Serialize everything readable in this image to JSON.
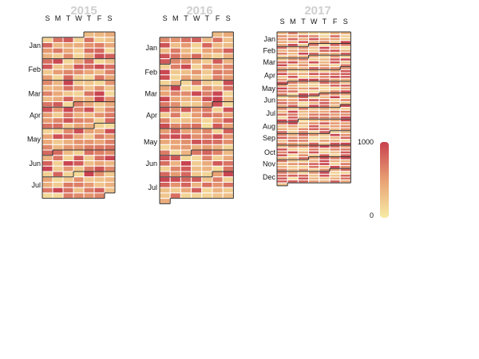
{
  "chart_data": {
    "type": "heatmap",
    "colors": {
      "low": "#f7eba5",
      "mid": "#e8a073",
      "high": "#c8414f"
    },
    "scale": {
      "min": 0,
      "max": 1000,
      "min_label": "0",
      "max_label": "1000"
    },
    "weekday_labels": [
      "S",
      "M",
      "T",
      "W",
      "T",
      "F",
      "S"
    ],
    "panels": [
      {
        "year": "2015",
        "start_month": 1,
        "end_month": 7,
        "end_day": 31,
        "months": [
          "Jan",
          "Feb",
          "Mar",
          "Apr",
          "May",
          "Jun",
          "Jul"
        ],
        "seed": 11
      },
      {
        "year": "2016",
        "start_month": 1,
        "end_month": 7,
        "end_day": 31,
        "months": [
          "Jan",
          "Feb",
          "Mar",
          "Apr",
          "May",
          "Jun",
          "Jul"
        ],
        "seed": 23
      },
      {
        "year": "2017",
        "start_month": 1,
        "end_month": 12,
        "end_day": 31,
        "months": [
          "Jan",
          "Feb",
          "Mar",
          "Apr",
          "May",
          "Jun",
          "Jul",
          "Aug",
          "Sep",
          "Oct",
          "Nov",
          "Dec"
        ],
        "seed": 37
      }
    ]
  }
}
